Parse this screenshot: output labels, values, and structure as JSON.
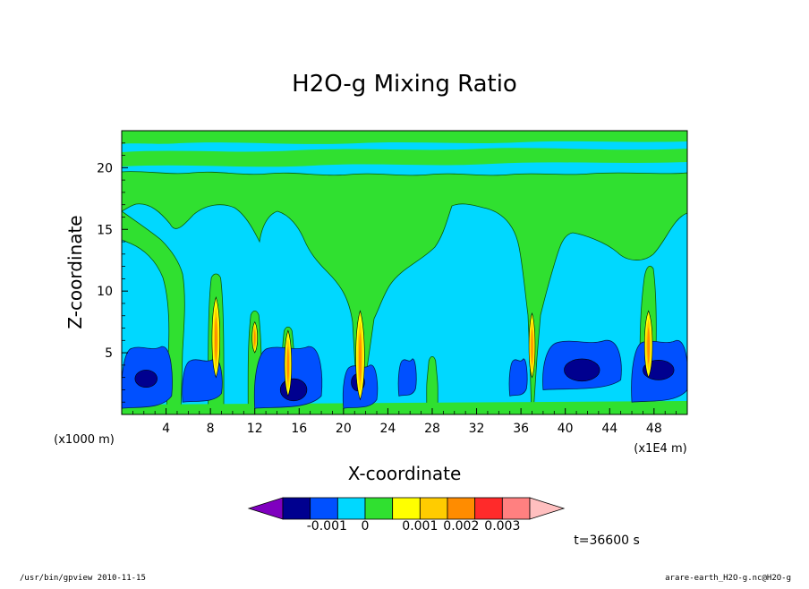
{
  "chart_data": {
    "type": "heatmap",
    "title": "H2O-g Mixing Ratio",
    "xlabel": "X-coordinate",
    "ylabel": "Z-coordinate",
    "x_unit_left": "(x1000 m)",
    "x_unit_right": "(x1E4 m)",
    "xlim": [
      0,
      51
    ],
    "ylim": [
      0,
      23
    ],
    "x_ticks": [
      "4",
      "8",
      "12",
      "16",
      "20",
      "24",
      "28",
      "32",
      "36",
      "40",
      "44",
      "48"
    ],
    "y_ticks": [
      "5",
      "10",
      "15",
      "20"
    ],
    "x_tick_values": [
      4,
      8,
      12,
      16,
      20,
      24,
      28,
      32,
      36,
      40,
      44,
      48
    ],
    "y_tick_values": [
      5,
      10,
      15,
      20
    ],
    "colorbar": {
      "colors": [
        "#7f00bf",
        "#00008f",
        "#0050ff",
        "#00d8ff",
        "#30e030",
        "#ffff00",
        "#ffcc00",
        "#ff8c00",
        "#ff2a2a",
        "#ff8080",
        "#ffbfbf"
      ],
      "labels": [
        "-0.001",
        "0",
        "0.001",
        "0.002",
        "0.003"
      ]
    },
    "background_color": "#00d8ff",
    "columns_x": [
      4.5,
      8.5,
      12,
      15,
      21.5,
      28,
      37,
      47.5
    ],
    "dry_pockets": [
      {
        "x0": 0,
        "x1": 4.5,
        "z0": 0.5,
        "z1": 5.5
      },
      {
        "x0": 5.5,
        "x1": 9,
        "z0": 1,
        "z1": 4.5
      },
      {
        "x0": 12,
        "x1": 18,
        "z0": 0.5,
        "z1": 5.5
      },
      {
        "x0": 20,
        "x1": 23,
        "z0": 0.5,
        "z1": 4
      },
      {
        "x0": 25,
        "x1": 26.5,
        "z0": 1.5,
        "z1": 4.5
      },
      {
        "x0": 35,
        "x1": 36.5,
        "z0": 1.5,
        "z1": 4.5
      },
      {
        "x0": 38,
        "x1": 45,
        "z0": 2,
        "z1": 6
      },
      {
        "x0": 46,
        "x1": 51,
        "z0": 1,
        "z1": 6
      }
    ],
    "time_label": "t=36600 s"
  },
  "footer": {
    "left": "/usr/bin/gpview  2010-11-15",
    "right": "arare-earth_H2O-g.nc@H2O-g"
  }
}
